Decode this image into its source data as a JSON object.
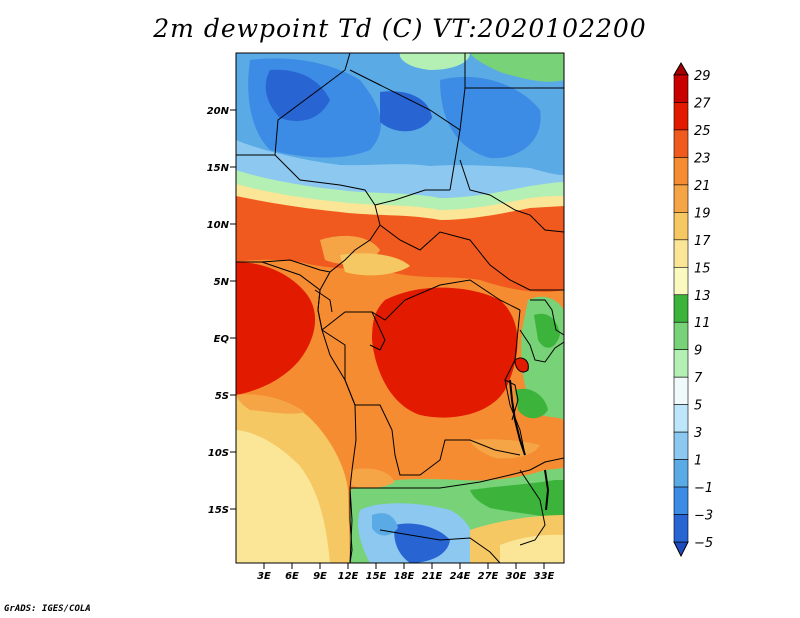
{
  "title": "2m dewpoint Td (C) VT:2020102200",
  "credit": "GrADS: IGES/COLA",
  "map": {
    "lat_labels": [
      "20N",
      "15N",
      "10N",
      "5N",
      "EQ",
      "5S",
      "10S",
      "15S"
    ],
    "lon_labels": [
      "3E",
      "6E",
      "9E",
      "12E",
      "15E",
      "18E",
      "21E",
      "24E",
      "27E",
      "30E",
      "33E"
    ]
  },
  "colorbar": {
    "levels": [
      "29",
      "27",
      "25",
      "23",
      "21",
      "19",
      "17",
      "15",
      "13",
      "11",
      "9",
      "7",
      "5",
      "3",
      "1",
      "−1",
      "−3",
      "−5"
    ],
    "colors": [
      "#a50000",
      "#c80000",
      "#e21a00",
      "#f05a1e",
      "#f58c32",
      "#f5a546",
      "#f5c864",
      "#fae696",
      "#fafabe",
      "#3cb43c",
      "#78d278",
      "#b4f0b4",
      "#f0fafa",
      "#bee6fa",
      "#8cc8f0",
      "#5aaae6",
      "#3c8ce6",
      "#2864d2",
      "#1e4bbe"
    ]
  }
}
